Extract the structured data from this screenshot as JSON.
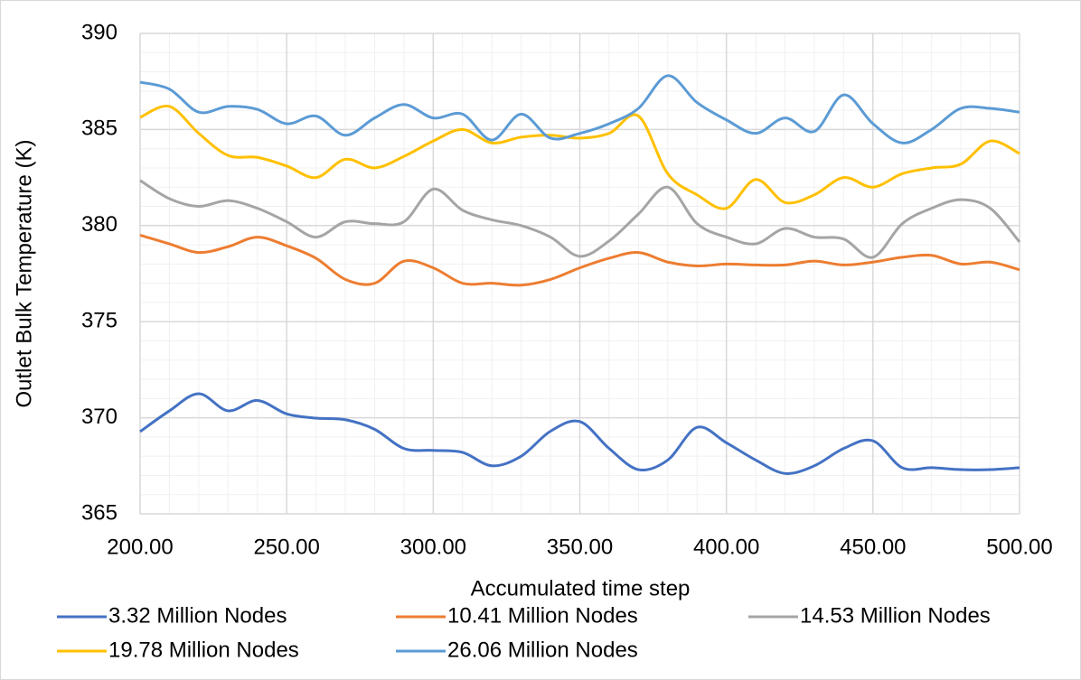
{
  "chart_data": {
    "type": "line",
    "x_label": "Accumulated time step",
    "y_label": "Outlet Bulk Temperature (K)",
    "x": [
      200,
      210,
      220,
      230,
      240,
      250,
      260,
      270,
      280,
      290,
      300,
      310,
      320,
      330,
      340,
      350,
      360,
      370,
      380,
      390,
      400,
      410,
      420,
      430,
      440,
      450,
      460,
      470,
      480,
      490,
      500
    ],
    "series": [
      {
        "name": "3.32 Million Nodes",
        "color": "#4472c4",
        "values": [
          369.28,
          370.36,
          371.25,
          370.36,
          370.9,
          370.2,
          369.98,
          369.9,
          369.4,
          368.4,
          368.3,
          368.2,
          367.5,
          368.0,
          369.3,
          369.8,
          368.4,
          367.3,
          367.8,
          369.5,
          368.7,
          367.8,
          367.1,
          367.5,
          368.4,
          368.8,
          367.4,
          367.4,
          367.3,
          367.3,
          367.4
        ]
      },
      {
        "name": "10.41 Million Nodes",
        "color": "#ed7d31",
        "values": [
          379.5,
          379.05,
          378.6,
          378.9,
          379.4,
          378.95,
          378.3,
          377.2,
          377.0,
          378.15,
          377.8,
          377.0,
          377.0,
          376.9,
          377.2,
          377.8,
          378.3,
          378.6,
          378.1,
          377.9,
          378.0,
          377.95,
          377.95,
          378.15,
          377.95,
          378.1,
          378.35,
          378.45,
          378.0,
          378.1,
          377.7
        ]
      },
      {
        "name": "14.53 Million Nodes",
        "color": "#a5a5a5",
        "values": [
          382.35,
          381.4,
          381.0,
          381.3,
          380.9,
          380.2,
          379.4,
          380.2,
          380.1,
          380.2,
          381.9,
          380.8,
          380.3,
          380.0,
          379.4,
          378.4,
          379.2,
          380.6,
          382.0,
          380.1,
          379.4,
          379.05,
          379.85,
          379.4,
          379.3,
          378.35,
          380.1,
          380.9,
          381.35,
          380.9,
          379.15
        ]
      },
      {
        "name": "19.78 Million Nodes",
        "color": "#ffc000",
        "values": [
          385.63,
          386.2,
          384.8,
          383.65,
          383.55,
          383.1,
          382.5,
          383.45,
          383.0,
          383.6,
          384.4,
          385.0,
          384.3,
          384.6,
          384.7,
          384.55,
          384.8,
          385.7,
          382.7,
          381.6,
          380.9,
          382.4,
          381.2,
          381.6,
          382.5,
          382.0,
          382.7,
          383.0,
          383.2,
          384.4,
          383.75
        ]
      },
      {
        "name": "26.06 Million Nodes",
        "color": "#5b9bd5",
        "values": [
          387.46,
          387.1,
          385.9,
          386.2,
          386.05,
          385.3,
          385.7,
          384.7,
          385.6,
          386.3,
          385.6,
          385.8,
          384.45,
          385.8,
          384.55,
          384.8,
          385.3,
          386.1,
          387.8,
          386.4,
          385.5,
          384.8,
          385.6,
          384.9,
          386.8,
          385.3,
          384.3,
          385.0,
          386.1,
          386.1,
          385.9
        ]
      }
    ],
    "xlim": [
      200,
      500
    ],
    "xticks": [
      {
        "value": 200,
        "label": "200.00"
      },
      {
        "value": 250,
        "label": "250.00"
      },
      {
        "value": 300,
        "label": "300.00"
      },
      {
        "value": 350,
        "label": "350.00"
      },
      {
        "value": 400,
        "label": "400.00"
      },
      {
        "value": 450,
        "label": "450.00"
      },
      {
        "value": 500,
        "label": "500.00"
      }
    ],
    "ylim": [
      365,
      390
    ],
    "yticks": [
      365,
      370,
      375,
      380,
      385,
      390
    ],
    "grid": true,
    "minor_grid": true,
    "legend": "bottom"
  }
}
